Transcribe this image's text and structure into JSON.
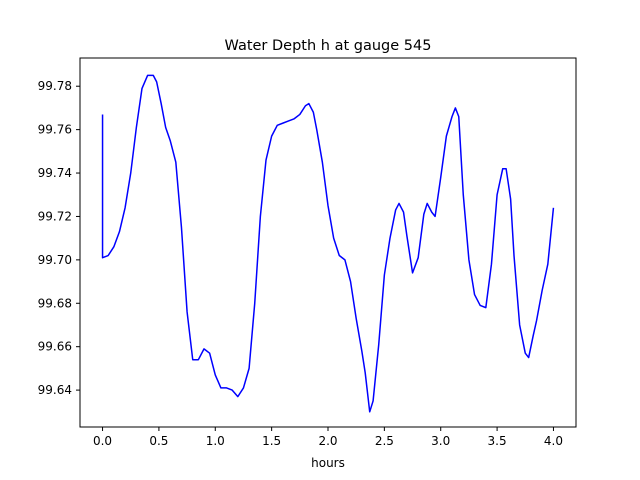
{
  "chart_data": {
    "type": "line",
    "title": "Water Depth h at gauge 545",
    "xlabel": "hours",
    "ylabel": "",
    "xlim": [
      -0.2,
      4.2
    ],
    "ylim": [
      99.623,
      99.793
    ],
    "x_ticks": [
      0.0,
      0.5,
      1.0,
      1.5,
      2.0,
      2.5,
      3.0,
      3.5,
      4.0
    ],
    "x_tick_labels": [
      "0.0",
      "0.5",
      "1.0",
      "1.5",
      "2.0",
      "2.5",
      "3.0",
      "3.5",
      "4.0"
    ],
    "y_ticks": [
      99.64,
      99.66,
      99.68,
      99.7,
      99.72,
      99.74,
      99.76,
      99.78
    ],
    "y_tick_labels": [
      "99.64",
      "99.66",
      "99.68",
      "99.70",
      "99.72",
      "99.74",
      "99.76",
      "99.78"
    ],
    "grid": false,
    "line_color": "#0000ff",
    "series": [
      {
        "x": [
          0.0,
          0.0,
          0.05,
          0.1,
          0.15,
          0.2,
          0.25,
          0.3,
          0.35,
          0.4,
          0.45,
          0.48,
          0.52,
          0.56,
          0.6,
          0.65,
          0.7,
          0.75,
          0.8,
          0.85,
          0.9,
          0.95,
          1.0,
          1.05,
          1.1,
          1.15,
          1.2,
          1.25,
          1.3,
          1.35,
          1.4,
          1.45,
          1.5,
          1.55,
          1.6,
          1.65,
          1.7,
          1.75,
          1.8,
          1.83,
          1.87,
          1.9,
          1.95,
          2.0,
          2.05,
          2.1,
          2.15,
          2.2,
          2.25,
          2.3,
          2.33,
          2.37,
          2.4,
          2.45,
          2.5,
          2.55,
          2.6,
          2.63,
          2.67,
          2.7,
          2.75,
          2.8,
          2.85,
          2.88,
          2.92,
          2.95,
          3.0,
          3.05,
          3.1,
          3.13,
          3.16,
          3.2,
          3.25,
          3.3,
          3.35,
          3.4,
          3.45,
          3.5,
          3.55,
          3.58,
          3.62,
          3.65,
          3.7,
          3.75,
          3.78,
          3.82,
          3.85,
          3.9,
          3.95,
          4.0
        ],
        "y": [
          99.767,
          99.701,
          99.702,
          99.706,
          99.713,
          99.724,
          99.74,
          99.761,
          99.779,
          99.785,
          99.785,
          99.782,
          99.772,
          99.761,
          99.755,
          99.745,
          99.715,
          99.676,
          99.654,
          99.654,
          99.659,
          99.657,
          99.647,
          99.641,
          99.641,
          99.64,
          99.637,
          99.641,
          99.65,
          99.68,
          99.72,
          99.746,
          99.757,
          99.762,
          99.763,
          99.764,
          99.765,
          99.767,
          99.771,
          99.772,
          99.768,
          99.76,
          99.745,
          99.725,
          99.71,
          99.702,
          99.7,
          99.69,
          99.673,
          99.658,
          99.648,
          99.63,
          99.635,
          99.661,
          99.693,
          99.71,
          99.723,
          99.726,
          99.722,
          99.711,
          99.694,
          99.701,
          99.721,
          99.726,
          99.722,
          99.72,
          99.738,
          99.757,
          99.766,
          99.77,
          99.766,
          99.73,
          99.7,
          99.684,
          99.679,
          99.678,
          99.698,
          99.73,
          99.742,
          99.742,
          99.728,
          99.702,
          99.67,
          99.657,
          99.655,
          99.665,
          99.672,
          99.686,
          99.698,
          99.724
        ]
      }
    ]
  }
}
